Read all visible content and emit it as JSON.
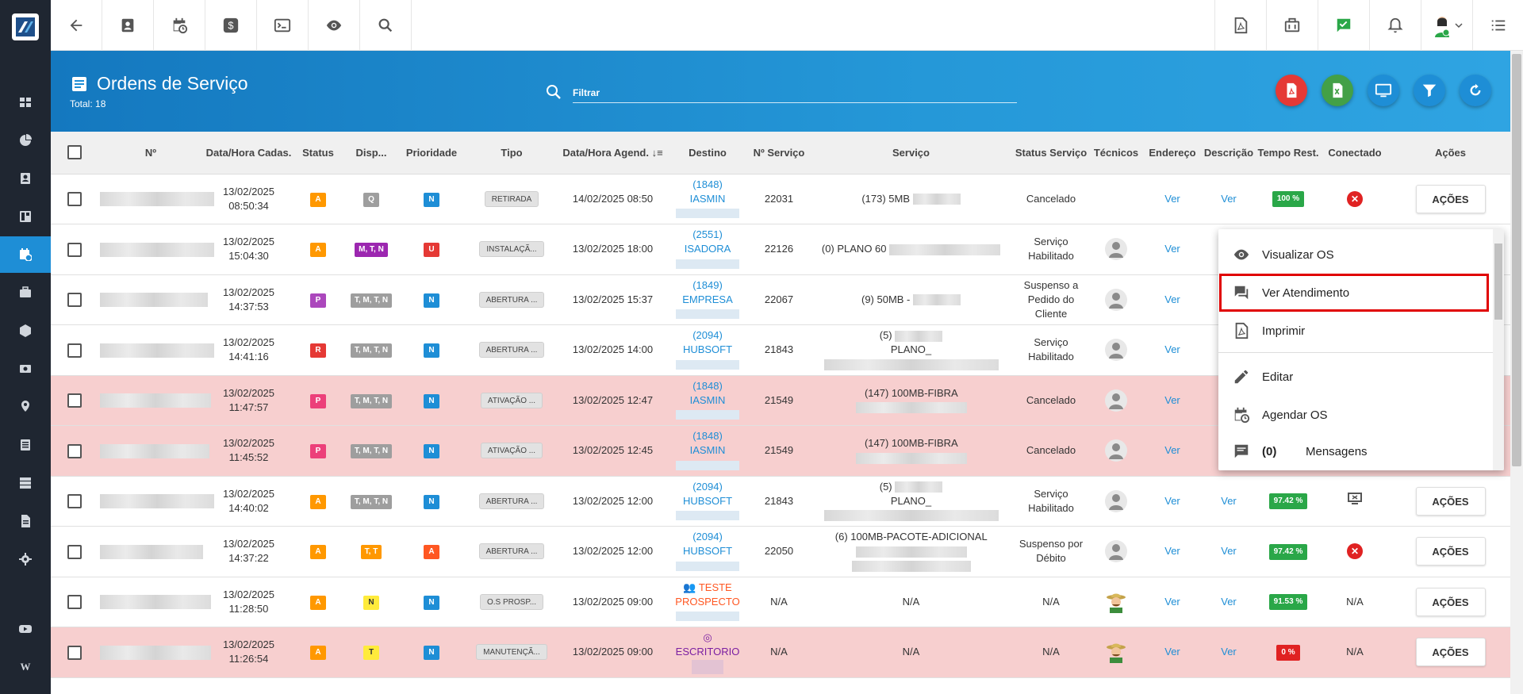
{
  "header": {
    "title": "Ordens de Serviço",
    "total": "Total: 18",
    "filter_placeholder": "Filtrar",
    "colors": {
      "pdf": "#e53935",
      "excel": "#43a047",
      "blue": "#1e8ed6"
    }
  },
  "columns": [
    "Nº",
    "Data/Hora Cadas.",
    "Status",
    "Disp...",
    "Prioridade",
    "Tipo",
    "Data/Hora Agend.",
    "Destino",
    "Nº Serviço",
    "Serviço",
    "Status Serviço",
    "Técnicos",
    "Endereço",
    "Descrição",
    "Tempo Rest.",
    "Conectado",
    "Ações"
  ],
  "status_colors": {
    "A": "#ff9800",
    "P": "#ab47bc",
    "R": "#e53935"
  },
  "rows": [
    {
      "date": "13/02/2025",
      "time": "08:50:34",
      "status": "A",
      "status_color": "#ff9800",
      "disp": "Q",
      "disp_color": "#9e9e9e",
      "prio": "N",
      "prio_color": "#1e8ed6",
      "tipo": "RETIRADA",
      "agend": "14/02/2025 08:50",
      "dest1": "(1848)",
      "dest2": "IASMIN",
      "nserv": "22031",
      "serv1": "(173) 5MB",
      "serv2": "",
      "status_serv": "Cancelado",
      "tec": "",
      "end": "Ver",
      "desc": "Ver",
      "tempo": "100 %",
      "tempo_color": "#2aa748",
      "conectado": "x",
      "acao": "AÇÕES",
      "pink": false
    },
    {
      "date": "13/02/2025",
      "time": "15:04:30",
      "status": "A",
      "status_color": "#ff9800",
      "disp": "M, T, N",
      "disp_color": "#9c27b0",
      "prio": "U",
      "prio_color": "#e53935",
      "tipo": "INSTALAÇÃ...",
      "agend": "13/02/2025 18:00",
      "dest1": "(2551)",
      "dest2": "ISADORA",
      "nserv": "22126",
      "serv1": "(0) PLANO 60",
      "serv2": "",
      "status_serv": "Serviço Habilitado",
      "tec": "user",
      "end": "Ver",
      "desc": "",
      "tempo": "",
      "tempo_color": "",
      "conectado": "",
      "acao": "",
      "pink": false
    },
    {
      "date": "13/02/2025",
      "time": "14:37:53",
      "status": "P",
      "status_color": "#ab47bc",
      "disp": "T, M, T, N",
      "disp_color": "#9e9e9e",
      "prio": "N",
      "prio_color": "#1e8ed6",
      "tipo": "ABERTURA ...",
      "agend": "13/02/2025 15:37",
      "dest1": "(1849)",
      "dest2": "EMPRESA",
      "nserv": "22067",
      "serv1": "(9) 50MB -",
      "serv2": "",
      "status_serv": "Suspenso a Pedido do Cliente",
      "tec": "user",
      "end": "Ver",
      "desc": "",
      "tempo": "",
      "tempo_color": "",
      "conectado": "",
      "acao": "",
      "pink": false
    },
    {
      "date": "13/02/2025",
      "time": "14:41:16",
      "status": "R",
      "status_color": "#e53935",
      "disp": "T, M, T, N",
      "disp_color": "#9e9e9e",
      "prio": "N",
      "prio_color": "#1e8ed6",
      "tipo": "ABERTURA ...",
      "agend": "13/02/2025 14:00",
      "dest1": "(2094)",
      "dest2": "HUBSOFT",
      "nserv": "21843",
      "serv1": "(5)",
      "serv2": "PLANO_",
      "status_serv": "Serviço Habilitado",
      "tec": "user",
      "end": "Ver",
      "desc": "",
      "tempo": "",
      "tempo_color": "",
      "conectado": "",
      "acao": "",
      "pink": false
    },
    {
      "date": "13/02/2025",
      "time": "11:47:57",
      "status": "P",
      "status_color": "#ec407a",
      "disp": "T, M, T, N",
      "disp_color": "#9e9e9e",
      "prio": "N",
      "prio_color": "#1e8ed6",
      "tipo": "ATIVAÇÃO ...",
      "agend": "13/02/2025 12:47",
      "dest1": "(1848)",
      "dest2": "IASMIN",
      "nserv": "21549",
      "serv1": "(147) 100MB-FIBRA",
      "serv2": "",
      "status_serv": "Cancelado",
      "tec": "user",
      "end": "Ver",
      "desc": "",
      "tempo": "",
      "tempo_color": "",
      "conectado": "",
      "acao": "",
      "pink": true
    },
    {
      "date": "13/02/2025",
      "time": "11:45:52",
      "status": "P",
      "status_color": "#ec407a",
      "disp": "T, M, T, N",
      "disp_color": "#9e9e9e",
      "prio": "N",
      "prio_color": "#1e8ed6",
      "tipo": "ATIVAÇÃO ...",
      "agend": "13/02/2025 12:45",
      "dest1": "(1848)",
      "dest2": "IASMIN",
      "nserv": "21549",
      "serv1": "(147) 100MB-FIBRA",
      "serv2": "",
      "status_serv": "Cancelado",
      "tec": "user",
      "end": "Ver",
      "desc": "",
      "tempo": "",
      "tempo_color": "",
      "conectado": "",
      "acao": "",
      "pink": true
    },
    {
      "date": "13/02/2025",
      "time": "14:40:02",
      "status": "A",
      "status_color": "#ff9800",
      "disp": "T, M, T, N",
      "disp_color": "#9e9e9e",
      "prio": "N",
      "prio_color": "#1e8ed6",
      "tipo": "ABERTURA ...",
      "agend": "13/02/2025 12:00",
      "dest1": "(2094)",
      "dest2": "HUBSOFT",
      "nserv": "21843",
      "serv1": "(5)",
      "serv2": "PLANO_",
      "status_serv": "Serviço Habilitado",
      "tec": "user",
      "end": "Ver",
      "desc": "Ver",
      "tempo": "97.42 %",
      "tempo_color": "#2aa748",
      "conectado": "screen",
      "acao": "AÇÕES",
      "pink": false
    },
    {
      "date": "13/02/2025",
      "time": "14:37:22",
      "status": "A",
      "status_color": "#ff9800",
      "disp": "T, T",
      "disp_color": "#ff9800",
      "prio": "A",
      "prio_color": "#ff5722",
      "tipo": "ABERTURA ...",
      "agend": "13/02/2025 12:00",
      "dest1": "(2094)",
      "dest2": "HUBSOFT",
      "nserv": "22050",
      "serv1": "(6) 100MB-PACOTE-ADICIONAL",
      "serv2": "",
      "status_serv": "Suspenso por Débito",
      "tec": "user",
      "end": "Ver",
      "desc": "Ver",
      "tempo": "97.42 %",
      "tempo_color": "#2aa748",
      "conectado": "x",
      "acao": "AÇÕES",
      "pink": false
    },
    {
      "date": "13/02/2025",
      "time": "11:28:50",
      "status": "A",
      "status_color": "#ff9800",
      "disp": "N",
      "disp_color": "#ffeb3b",
      "prio": "N",
      "prio_color": "#1e8ed6",
      "tipo": "O.S PROSP...",
      "agend": "13/02/2025 09:00",
      "dest1": "TESTE",
      "dest2": "PROSPECTO",
      "nserv": "N/A",
      "serv1": "N/A",
      "serv2": "",
      "status_serv": "N/A",
      "tec": "farmer",
      "end": "Ver",
      "desc": "Ver",
      "tempo": "91.53 %",
      "tempo_color": "#2aa748",
      "conectado": "N/A",
      "acao": "AÇÕES",
      "pink": false
    },
    {
      "date": "13/02/2025",
      "time": "11:26:54",
      "status": "A",
      "status_color": "#ff9800",
      "disp": "T",
      "disp_color": "#ffeb3b",
      "prio": "N",
      "prio_color": "#1e8ed6",
      "tipo": "MANUTENÇÃ...",
      "agend": "13/02/2025 09:00",
      "dest1": "",
      "dest2": "ESCRITORIO",
      "nserv": "N/A",
      "serv1": "N/A",
      "serv2": "",
      "status_serv": "N/A",
      "tec": "farmer",
      "end": "Ver",
      "desc": "Ver",
      "tempo": "0 %",
      "tempo_color": "#e02222",
      "conectado": "N/A",
      "acao": "AÇÕES",
      "pink": true
    }
  ],
  "menu": {
    "items": [
      "Visualizar OS",
      "Ver Atendimento",
      "Imprimir",
      "Editar",
      "Agendar OS",
      "Mensagens"
    ],
    "messages_count": "(0)"
  }
}
